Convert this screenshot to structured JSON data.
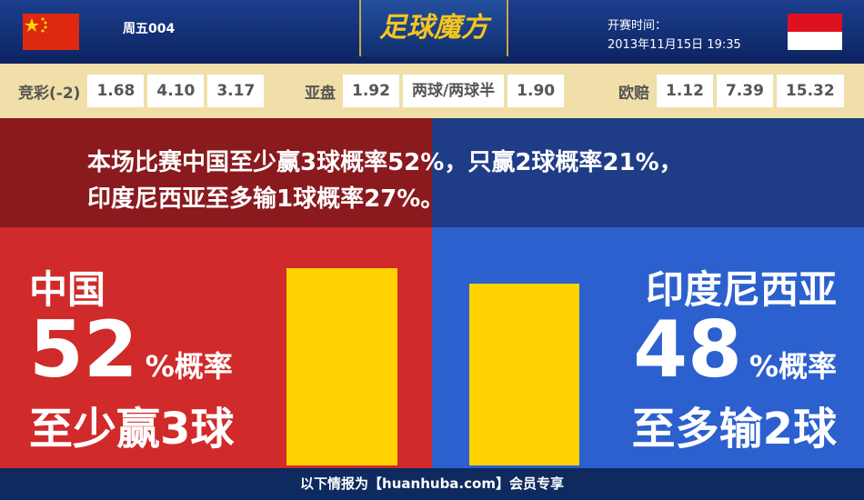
{
  "header": {
    "match_code": "周五004",
    "logo": "足球魔方",
    "kickoff_label": "开赛时间：",
    "kickoff_time": "2013年11月15日 19:35"
  },
  "odds": [
    {
      "label": "竞彩(-2)",
      "values": [
        "1.68",
        "4.10",
        "3.17"
      ]
    },
    {
      "label": "亚盘",
      "values": [
        "1.92",
        "两球/两球半",
        "1.90"
      ]
    },
    {
      "label": "欧赔",
      "values": [
        "1.12",
        "7.39",
        "15.32"
      ]
    }
  ],
  "headline": [
    "本场比赛中国至少赢3球概率52%，只赢2球概率21%，",
    "印度尼西亚至多输1球概率27%。"
  ],
  "teams": [
    {
      "name": "中国",
      "probability": 52,
      "unit": "%概率",
      "outcome": "至少赢3球"
    },
    {
      "name": "印度尼西亚",
      "probability": 48,
      "unit": "%概率",
      "outcome": "至多输2球"
    }
  ],
  "footer": "以下情报为【huanhuba.com】会员专享"
}
